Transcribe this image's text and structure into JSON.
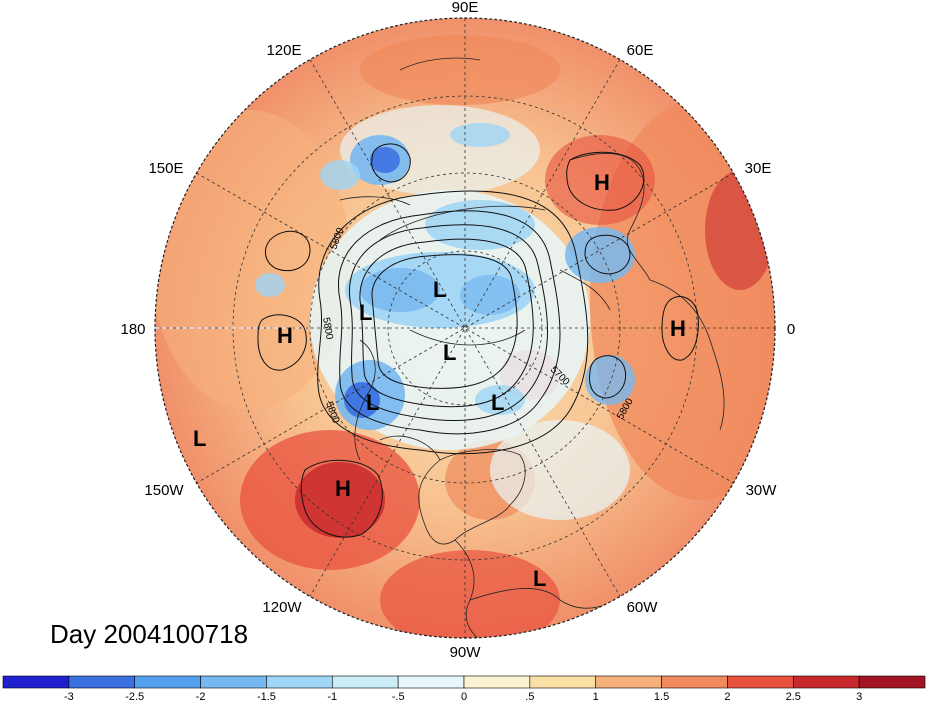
{
  "title_label": "Day 2004100718",
  "longitude_labels": {
    "lon_90E": "90E",
    "lon_60E": "60E",
    "lon_30E": "30E",
    "lon_0": "0",
    "lon_30W": "30W",
    "lon_60W": "60W",
    "lon_90W": "90W",
    "lon_120W": "120W",
    "lon_150W": "150W",
    "lon_180": "180",
    "lon_150E": "150E",
    "lon_120E": "120E"
  },
  "pressure_centers": [
    {
      "id": "h-europe",
      "label": "H"
    },
    {
      "id": "h-atlantic",
      "label": "H"
    },
    {
      "id": "h-pacific-west",
      "label": "H"
    },
    {
      "id": "h-pacific-east",
      "label": "H"
    },
    {
      "id": "l-siberia",
      "label": "L"
    },
    {
      "id": "l-east-siberia",
      "label": "L"
    },
    {
      "id": "l-pole",
      "label": "L"
    },
    {
      "id": "l-alaska",
      "label": "L"
    },
    {
      "id": "l-canada",
      "label": "L"
    },
    {
      "id": "l-pacific",
      "label": "L"
    },
    {
      "id": "l-caribbean",
      "label": "L"
    }
  ],
  "contour_labels": {
    "c5800_a": "5800",
    "c5800_b": "5800",
    "c5800_c": "5800",
    "c5700": "5700",
    "c5800_d": "5800"
  },
  "colorbar": {
    "ticks": [
      "-3",
      "-2.5",
      "-2",
      "-1.5",
      "-1",
      "-.5",
      "0",
      ".5",
      "1",
      "1.5",
      "2",
      "2.5",
      "3"
    ],
    "colors": [
      "#2020d0",
      "#3a6fe0",
      "#55a0ee",
      "#78b8f0",
      "#9fd5f5",
      "#c9ecf7",
      "#e8f7fa",
      "#fbf3d2",
      "#fbe0a6",
      "#f6b07c",
      "#f08a5c",
      "#e8523f",
      "#c8282c",
      "#a01424"
    ]
  }
}
